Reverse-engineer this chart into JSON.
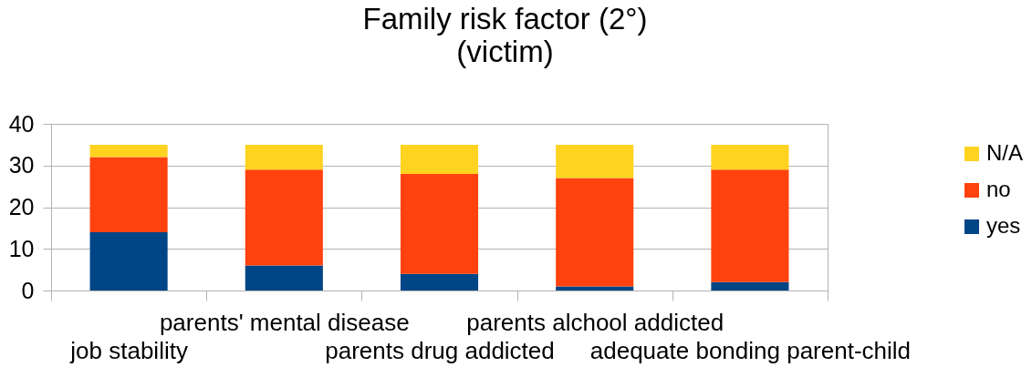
{
  "chart_data": {
    "type": "bar",
    "title": "Family risk factor (2°)",
    "subtitle": "(victim)",
    "categories": [
      "job stability",
      "parents' mental disease",
      "parents drug addicted",
      "parents alchool addicted",
      "adequate bonding parent-child"
    ],
    "series": [
      {
        "name": "yes",
        "color": "#004586",
        "values": [
          14,
          6,
          4,
          1,
          2
        ]
      },
      {
        "name": "no",
        "color": "#ff420e",
        "values": [
          18,
          23,
          24,
          26,
          27
        ]
      },
      {
        "name": "N/A",
        "color": "#ffd320",
        "values": [
          3,
          6,
          7,
          8,
          6
        ]
      }
    ],
    "stacked": true,
    "ylim": [
      0,
      40
    ],
    "yticks": [
      0,
      10,
      20,
      30,
      40
    ],
    "grid": "y",
    "legend": "right"
  }
}
